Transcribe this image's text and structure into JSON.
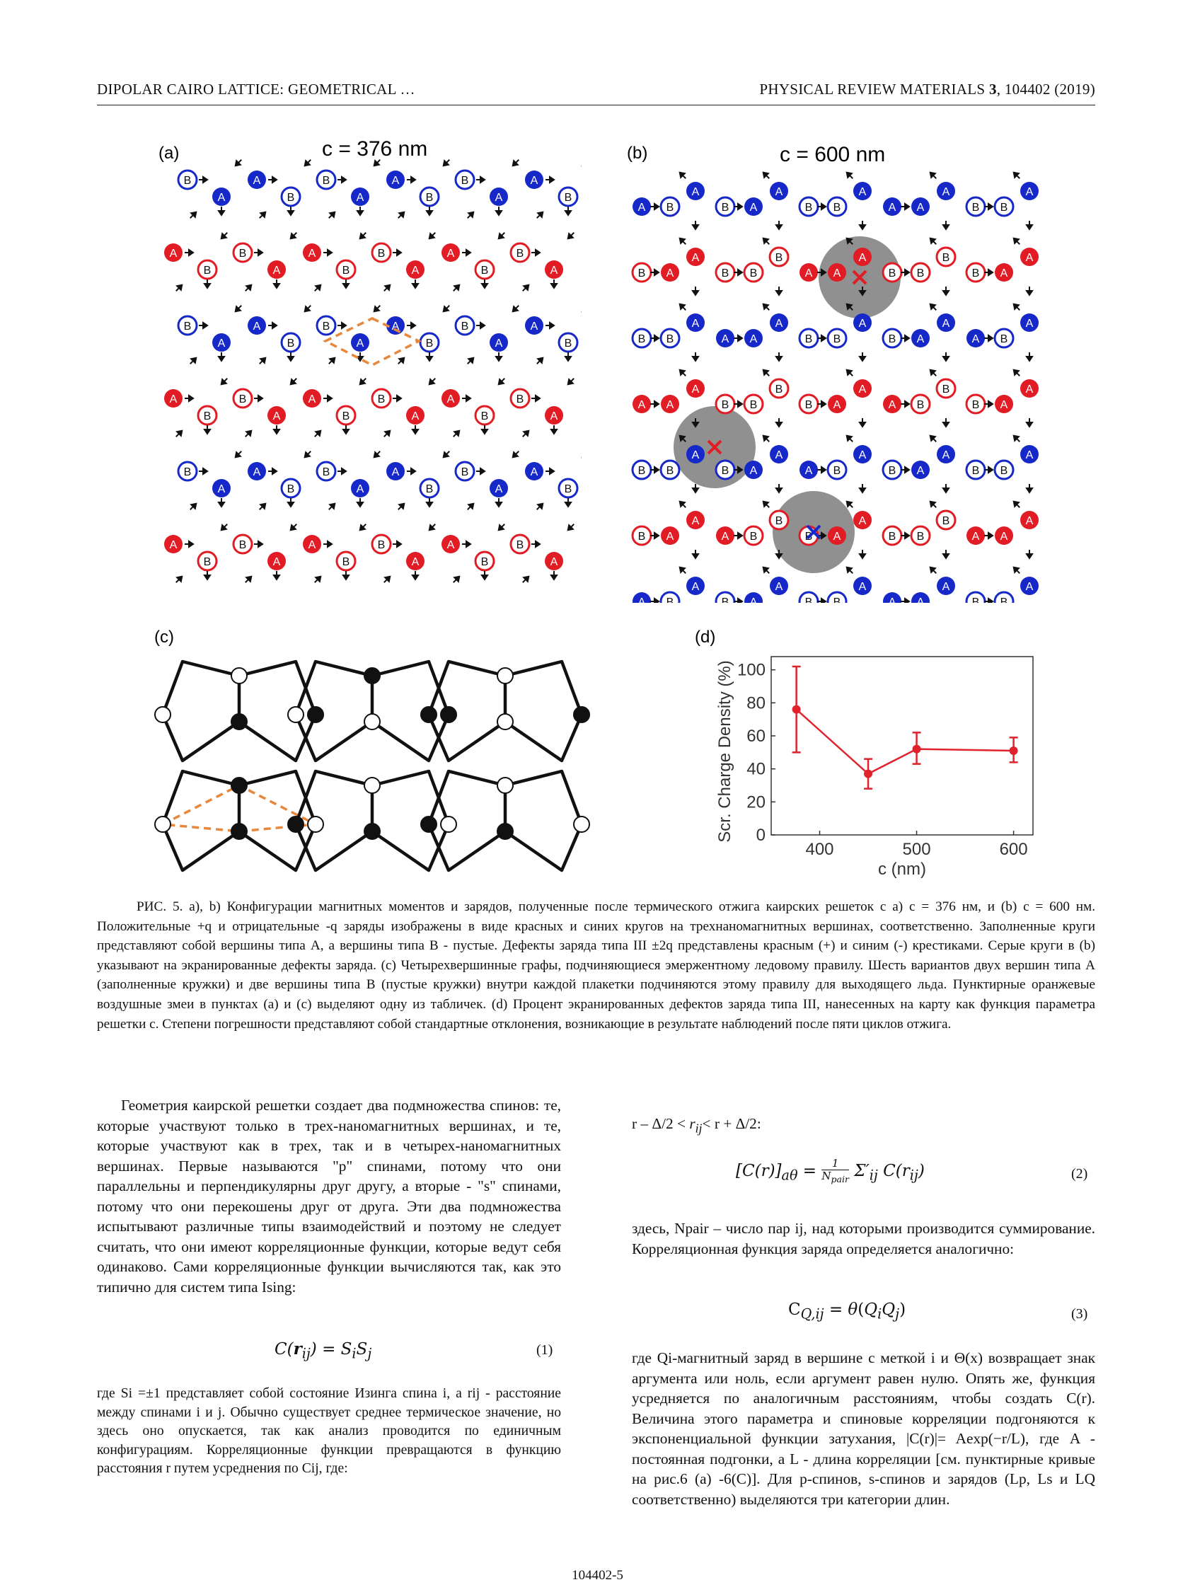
{
  "header": {
    "left": "DIPOLAR CAIRO LATTICE: GEOMETRICAL …",
    "right_prefix": "PHYSICAL REVIEW MATERIALS ",
    "right_volume": "3",
    "right_suffix": ", 104402 (2019)"
  },
  "figure": {
    "panel_a": {
      "label": "(a)",
      "title": "c = 376 nm"
    },
    "panel_b": {
      "label": "(b)",
      "title": "c = 600 nm"
    },
    "panel_c": {
      "label": "(c)"
    },
    "panel_d": {
      "label": "(d)"
    },
    "colors": {
      "typeA_plus": "#e11c24",
      "typeB_minus": "#1628c8",
      "defect_disc": "#8a8a8a",
      "dimer_dash": "#e8873a",
      "plot_line": "#e0222c"
    },
    "vertex_labels": {
      "a": "A",
      "b": "B"
    }
  },
  "chart_data": {
    "type": "line",
    "x": [
      376,
      450,
      500,
      600
    ],
    "y": [
      76,
      37,
      52,
      51
    ],
    "yerr_upper": [
      102,
      46,
      62,
      59
    ],
    "yerr_lower": [
      50,
      28,
      43,
      44
    ],
    "xlabel": "c (nm)",
    "ylabel": "Scr. Charge Density (%)",
    "xlim": [
      350,
      620
    ],
    "ylim": [
      0,
      108
    ],
    "xticks": [
      400,
      500,
      600
    ],
    "yticks": [
      0,
      20,
      40,
      60,
      80,
      100
    ],
    "grid": false
  },
  "caption": "РИС. 5. a), b) Конфигурации магнитных моментов и зарядов, полученные после термического отжига каирских решеток с a) c = 376 нм, и (b) c = 600 нм. Положительные +q и отрицательные -q заряды изображены в виде красных и синих кругов на трехнаномагнитных вершинах, соответственно. Заполненные круги представляют собой вершины типа A, а вершины типа B - пустые. Дефекты заряда типа III ±2q представлены красным (+) и синим (-) крестиками. Серые круги в (b) указывают на экранированные дефекты заряда. (c) Четырехвершинные графы, подчиняющиеся эмержентному ледовому правилу. Шесть вариантов двух вершин типа A (заполненные кружки) и две вершины типа B (пустые кружки) внутри каждой плакетки подчиняются этому правилу для выходящего льда. Пунктирные оранжевые воздушные змеи в пунктах (a) и (c) выделяют одну из табличек. (d) Процент экранированных дефектов заряда типа III, нанесенных на карту как функция параметра решетки c. Степени погрешности представляют собой стандартные отклонения, возникающие в результате наблюдений после пяти циклов отжига.",
  "left_column": {
    "p1": "Геометрия каирской решетки создает два подмножества спинов: те, которые участвуют только в трех-наномагнитных вершинах, и те, которые участвуют как в трех, так и в четырех-наномагнитных вершинах. Первые называются \"p\" спинами, потому что они параллельны и перпендикулярны друг другу, а вторые - \"s\" спинами, потому что они перекошены друг от друга. Эти два подмножества испытывают различные типы взаимодействий и поэтому не следует считать, что они имеют корреляционные функции, которые ведут себя одинаково. Сами корреляционные функции вычисляются так, как это типично для систем типа Ising:",
    "eq1": "C(r_ij) = S_i S_j",
    "eq1_no": "(1)",
    "p2": "где Si =±1 представляет собой состояние Изинга спина i, а rij - расстояние между спинами i и j. Обычно существует среднее термическое значение, но здесь оно опускается, так как анализ проводится по единичным конфигурациям. Корреляционные функции превращаются в функцию расстояния r путем усреднения по Cij, где:"
  },
  "right_column": {
    "cond": "r – Δ/2 < r_ij < r + Δ/2:",
    "eq2": "[C(r)]_aθ = 1/N_pair Σ′_ij C(r_ij)",
    "eq2_no": "(2)",
    "p3": "здесь, Npair – число пар ij, над которыми производится суммирование. Корреляционная функция заряда определяется аналогично:",
    "eq3": "C_Q,ij = θ(Q_i Q_j)",
    "eq3_no": "(3)",
    "p4": "где Qi-магнитный заряд в вершине с меткой i и Θ(x) возвращает знак аргумента или ноль, если аргумент равен нулю. Опять же, функция усредняется по аналогичным расстояниям, чтобы создать C(r). Величина этого параметра и спиновые корреляции подгоняются к экспоненциальной функции затухания, |C(r)|= Aexp(−r/L), где A - постоянная подгонки, а L - длина корреляции [см. пунктирные кривые на рис.6 (a) -6(C)]. Для p-спинов, s-спинов и зарядов (Lp, Ls и LQ соответственно) выделяются три категории длин."
  },
  "footer": {
    "page": "104402-5"
  }
}
